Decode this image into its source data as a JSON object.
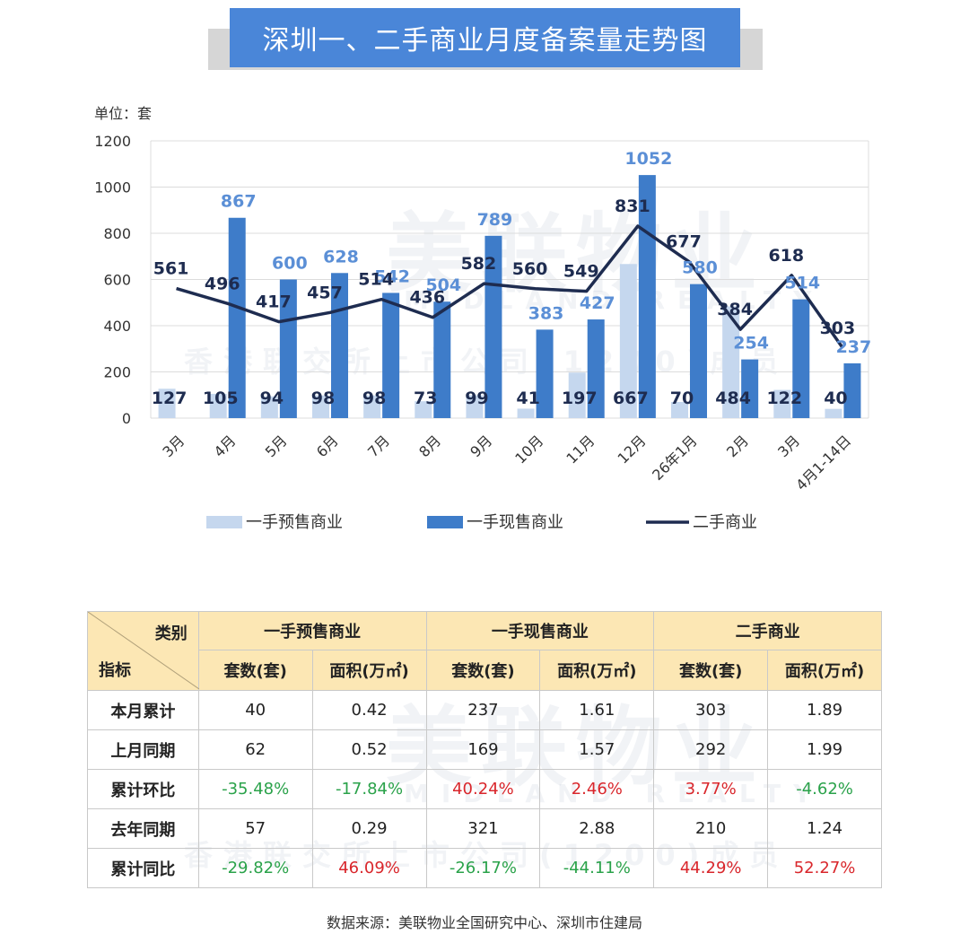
{
  "title": "深圳一、二手商业月度备案量走势图",
  "chart_data": {
    "type": "bar+line",
    "unit_label": "单位：套",
    "categories": [
      "3月",
      "4月",
      "5月",
      "6月",
      "7月",
      "8月",
      "9月",
      "10月",
      "11月",
      "12月",
      "26年1月",
      "2月",
      "3月",
      "4月1-14日"
    ],
    "ylim": [
      0,
      1200
    ],
    "yticks": [
      0,
      200,
      400,
      600,
      800,
      1000,
      1200
    ],
    "grid": true,
    "legend_position": "bottom",
    "series": [
      {
        "name": "一手预售商业",
        "type": "bar",
        "color": "#c5d7ee",
        "values": [
          127,
          105,
          94,
          98,
          98,
          73,
          99,
          41,
          197,
          667,
          70,
          484,
          122,
          40
        ]
      },
      {
        "name": "一手现售商业",
        "type": "bar",
        "color": "#3e7cc9",
        "values": [
          0,
          867,
          600,
          628,
          542,
          504,
          789,
          383,
          427,
          1052,
          580,
          254,
          514,
          237
        ]
      },
      {
        "name": "二手商业",
        "type": "line",
        "color": "#1e2c50",
        "values": [
          561,
          496,
          417,
          457,
          514,
          436,
          582,
          560,
          549,
          831,
          677,
          384,
          618,
          303
        ]
      }
    ]
  },
  "watermark": {
    "line1": "美联物业",
    "line2": "MIDLAND REALTY",
    "line3": "香港联交所上市公司(1200)成员"
  },
  "table": {
    "corner_top": "类别",
    "corner_bottom": "指标",
    "groups": [
      "一手预售商业",
      "一手现售商业",
      "二手商业"
    ],
    "subheaders": [
      "套数(套)",
      "面积(万㎡)",
      "套数(套)",
      "面积(万㎡)",
      "套数(套)",
      "面积(万㎡)"
    ],
    "rows": [
      {
        "label": "本月累计",
        "cells": [
          {
            "v": "40",
            "c": ""
          },
          {
            "v": "0.42",
            "c": ""
          },
          {
            "v": "237",
            "c": ""
          },
          {
            "v": "1.61",
            "c": ""
          },
          {
            "v": "303",
            "c": ""
          },
          {
            "v": "1.89",
            "c": ""
          }
        ]
      },
      {
        "label": "上月同期",
        "cells": [
          {
            "v": "62",
            "c": ""
          },
          {
            "v": "0.52",
            "c": ""
          },
          {
            "v": "169",
            "c": ""
          },
          {
            "v": "1.57",
            "c": ""
          },
          {
            "v": "292",
            "c": ""
          },
          {
            "v": "1.99",
            "c": ""
          }
        ]
      },
      {
        "label": "累计环比",
        "cells": [
          {
            "v": "-35.48%",
            "c": "neg"
          },
          {
            "v": "-17.84%",
            "c": "neg"
          },
          {
            "v": "40.24%",
            "c": "pos"
          },
          {
            "v": "2.46%",
            "c": "pos"
          },
          {
            "v": "3.77%",
            "c": "pos"
          },
          {
            "v": "-4.62%",
            "c": "neg"
          }
        ]
      },
      {
        "label": "去年同期",
        "cells": [
          {
            "v": "57",
            "c": ""
          },
          {
            "v": "0.29",
            "c": ""
          },
          {
            "v": "321",
            "c": ""
          },
          {
            "v": "2.88",
            "c": ""
          },
          {
            "v": "210",
            "c": ""
          },
          {
            "v": "1.24",
            "c": ""
          }
        ]
      },
      {
        "label": "累计同比",
        "cells": [
          {
            "v": "-29.82%",
            "c": "neg"
          },
          {
            "v": "46.09%",
            "c": "pos"
          },
          {
            "v": "-26.17%",
            "c": "neg"
          },
          {
            "v": "-44.11%",
            "c": "neg"
          },
          {
            "v": "44.29%",
            "c": "pos"
          },
          {
            "v": "52.27%",
            "c": "pos"
          }
        ]
      }
    ]
  },
  "source": "数据来源：美联物业全国研究中心、深圳市住建局"
}
